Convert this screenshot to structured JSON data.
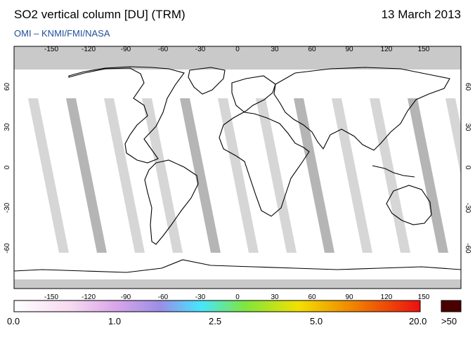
{
  "header": {
    "title": "SO2 vertical column [DU] (TRM)",
    "date": "13 March 2013",
    "source": "OMI  –  KNMI/FMI/NASA"
  },
  "map": {
    "projection": "equirectangular",
    "lon_ticks": [
      -150,
      -120,
      -90,
      -60,
      -30,
      0,
      30,
      60,
      90,
      120,
      150
    ],
    "lat_ticks": [
      60,
      30,
      0,
      -30,
      -60
    ],
    "lon_range": [
      -180,
      180
    ],
    "lat_range": [
      -90,
      90
    ],
    "colors": {
      "background": "#ffffff",
      "no_data": "#c9c9c9",
      "coast": "#000000"
    }
  },
  "colorbar": {
    "labels": [
      "0.0",
      "1.0",
      "2.5",
      "5.0",
      "20.0",
      ">50"
    ],
    "colors": [
      "#ffffff",
      "#f6d9f0",
      "#d9a6ea",
      "#9a8ee6",
      "#46e6ff",
      "#7fe63c",
      "#f2e000",
      "#f08000",
      "#ec1010",
      "#4a0000"
    ]
  }
}
